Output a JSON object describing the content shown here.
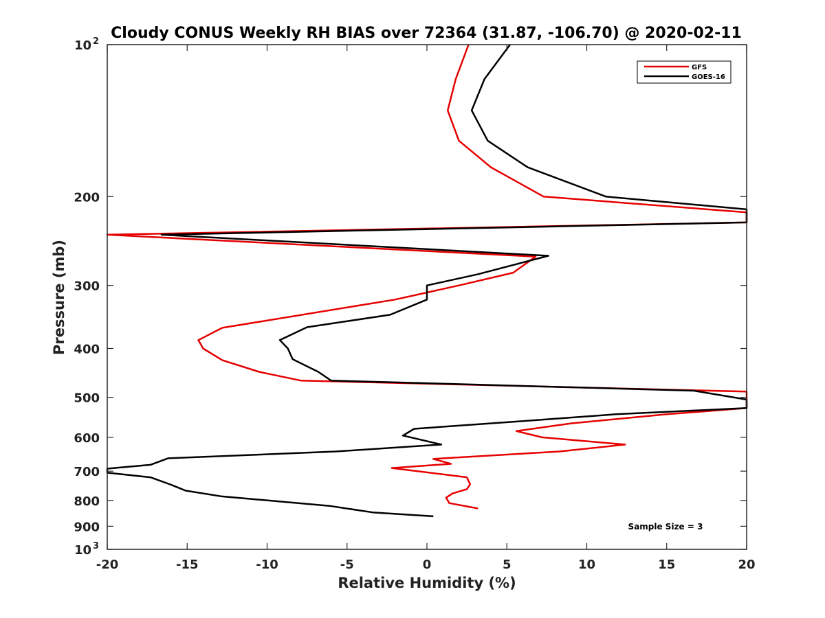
{
  "chart_data": {
    "type": "line",
    "title": "Cloudy CONUS Weekly RH BIAS over 72364 (31.87, -106.70) @ 2020-02-11",
    "xlabel": "Relative Humidity (%)",
    "ylabel": "Pressure (mb)",
    "xlim": [
      -20,
      20
    ],
    "ylim": [
      100,
      1000
    ],
    "y_scale": "log",
    "y_reversed": true,
    "x_ticks": [
      "-20",
      "-15",
      "-10",
      "-5",
      "0",
      "5",
      "10",
      "15",
      "20"
    ],
    "y_ticks": [
      {
        "value": 100,
        "label": "10",
        "exp": "2"
      },
      {
        "value": 200,
        "label": "200"
      },
      {
        "value": 300,
        "label": "300"
      },
      {
        "value": 400,
        "label": "400"
      },
      {
        "value": 500,
        "label": "500"
      },
      {
        "value": 600,
        "label": "600"
      },
      {
        "value": 700,
        "label": "700"
      },
      {
        "value": 800,
        "label": "800"
      },
      {
        "value": 900,
        "label": "900"
      },
      {
        "value": 1000,
        "label": "10",
        "exp": "3"
      }
    ],
    "legend_position": "top-right",
    "grid": false,
    "annotation": "Sample Size = 3",
    "series": [
      {
        "name": "GFS",
        "color": "#e60000",
        "points": [
          {
            "x": 2.6,
            "y": 100
          },
          {
            "x": 1.8,
            "y": 117
          },
          {
            "x": 1.3,
            "y": 135
          },
          {
            "x": 2.0,
            "y": 155
          },
          {
            "x": 4.0,
            "y": 175
          },
          {
            "x": 7.3,
            "y": 200
          },
          {
            "x": 20,
            "y": 215
          },
          {
            "x": 20,
            "y": 225
          },
          {
            "x": -20,
            "y": 238
          },
          {
            "x": 6.8,
            "y": 263
          },
          {
            "x": 5.4,
            "y": 283
          },
          {
            "x": 2.0,
            "y": 300
          },
          {
            "x": -2.0,
            "y": 320
          },
          {
            "x": -12.8,
            "y": 364
          },
          {
            "x": -14.3,
            "y": 385
          },
          {
            "x": -14.0,
            "y": 400
          },
          {
            "x": -12.8,
            "y": 422
          },
          {
            "x": -10.5,
            "y": 445
          },
          {
            "x": -7.9,
            "y": 463
          },
          {
            "x": 20,
            "y": 487
          },
          {
            "x": 20,
            "y": 525
          },
          {
            "x": 15.0,
            "y": 540
          },
          {
            "x": 9.0,
            "y": 563
          },
          {
            "x": 5.6,
            "y": 583
          },
          {
            "x": 7.2,
            "y": 600
          },
          {
            "x": 12.4,
            "y": 620
          },
          {
            "x": 8.3,
            "y": 640
          },
          {
            "x": 0.4,
            "y": 662
          },
          {
            "x": 1.5,
            "y": 677
          },
          {
            "x": -2.2,
            "y": 690
          },
          {
            "x": 2.5,
            "y": 720
          },
          {
            "x": 2.7,
            "y": 743
          },
          {
            "x": 2.5,
            "y": 760
          },
          {
            "x": 1.6,
            "y": 775
          },
          {
            "x": 1.2,
            "y": 790
          },
          {
            "x": 1.4,
            "y": 810
          },
          {
            "x": 3.2,
            "y": 830
          }
        ]
      },
      {
        "name": "GOES-16",
        "color": "#000000",
        "points": [
          {
            "x": 5.2,
            "y": 100
          },
          {
            "x": 3.6,
            "y": 117
          },
          {
            "x": 2.8,
            "y": 135
          },
          {
            "x": 3.8,
            "y": 155
          },
          {
            "x": 6.3,
            "y": 175
          },
          {
            "x": 11.2,
            "y": 200
          },
          {
            "x": 20,
            "y": 212
          },
          {
            "x": 20,
            "y": 225
          },
          {
            "x": -16.6,
            "y": 238
          },
          {
            "x": 7.6,
            "y": 262
          },
          {
            "x": 3.2,
            "y": 285
          },
          {
            "x": 0,
            "y": 300
          },
          {
            "x": 0,
            "y": 320
          },
          {
            "x": -2.3,
            "y": 343
          },
          {
            "x": -7.5,
            "y": 363
          },
          {
            "x": -9.2,
            "y": 385
          },
          {
            "x": -8.7,
            "y": 400
          },
          {
            "x": -8.4,
            "y": 420
          },
          {
            "x": -6.8,
            "y": 445
          },
          {
            "x": -6.0,
            "y": 463
          },
          {
            "x": 16.7,
            "y": 485
          },
          {
            "x": 20,
            "y": 505
          },
          {
            "x": 20,
            "y": 525
          },
          {
            "x": 11.8,
            "y": 540
          },
          {
            "x": 6.0,
            "y": 557
          },
          {
            "x": -0.8,
            "y": 577
          },
          {
            "x": -1.5,
            "y": 595
          },
          {
            "x": 0.9,
            "y": 620
          },
          {
            "x": -5.7,
            "y": 640
          },
          {
            "x": -16.2,
            "y": 660
          },
          {
            "x": -17.3,
            "y": 680
          },
          {
            "x": -20,
            "y": 692
          },
          {
            "x": -20,
            "y": 705
          },
          {
            "x": -17.3,
            "y": 720
          },
          {
            "x": -16.0,
            "y": 745
          },
          {
            "x": -15.1,
            "y": 765
          },
          {
            "x": -12.9,
            "y": 785
          },
          {
            "x": -6.1,
            "y": 820
          },
          {
            "x": -3.4,
            "y": 845
          },
          {
            "x": 0.4,
            "y": 860
          }
        ]
      }
    ]
  }
}
